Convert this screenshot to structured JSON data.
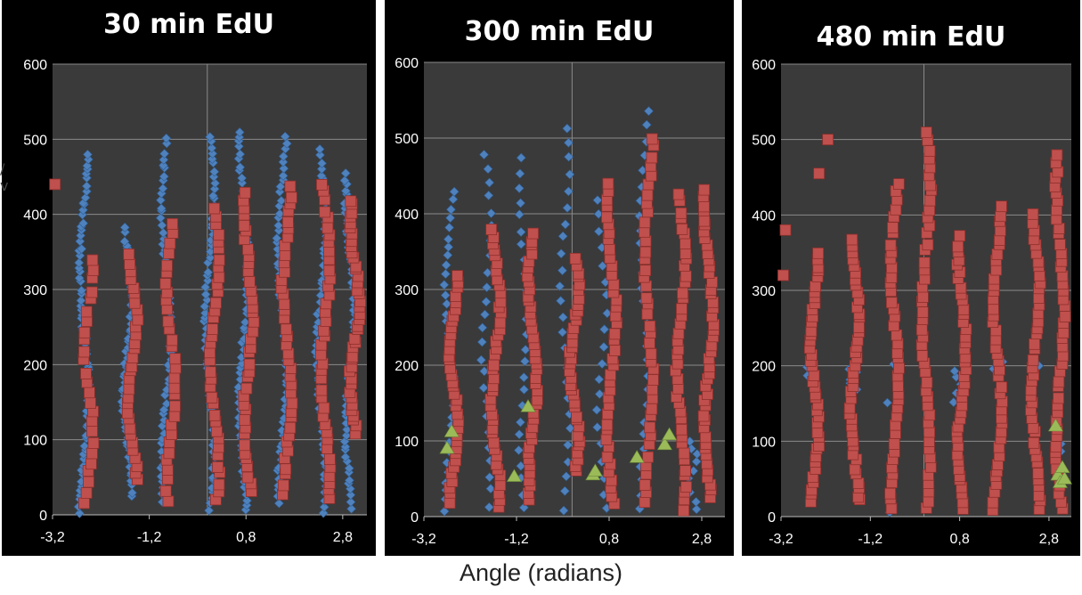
{
  "chart_data": [
    {
      "type": "scatter",
      "title": "30 min EdU",
      "xlabel": "",
      "ylabel": "",
      "xlim": [
        -3.2,
        3.3
      ],
      "ylim": [
        0,
        600
      ],
      "xticks": [
        "-3,2",
        "-1,2",
        "0,8",
        "2,8"
      ],
      "yticks": [
        "0",
        "100",
        "200",
        "300",
        "400",
        "500",
        "600"
      ],
      "grid": true,
      "series": [
        {
          "marker": "diamond",
          "color": "#4f81bd",
          "columns": [
            {
              "x": -2.55,
              "ymin": 5,
              "ymax": 480,
              "n": 70
            },
            {
              "x": -1.65,
              "ymin": 25,
              "ymax": 380,
              "n": 55
            },
            {
              "x": -0.85,
              "ymin": 20,
              "ymax": 500,
              "n": 60
            },
            {
              "x": 0.05,
              "ymin": 5,
              "ymax": 505,
              "n": 65
            },
            {
              "x": 0.75,
              "ymin": 5,
              "ymax": 512,
              "n": 65
            },
            {
              "x": 1.55,
              "ymin": 15,
              "ymax": 502,
              "n": 60
            },
            {
              "x": 2.35,
              "ymin": 5,
              "ymax": 486,
              "n": 60
            },
            {
              "x": 2.95,
              "ymin": 10,
              "ymax": 455,
              "n": 60
            }
          ]
        },
        {
          "marker": "square",
          "color": "#c0504d",
          "columns": [
            {
              "x": -2.45,
              "ymin": 15,
              "ymax": 340,
              "n": 25
            },
            {
              "x": -1.55,
              "ymin": 45,
              "ymax": 345,
              "n": 30
            },
            {
              "x": -0.75,
              "ymin": 20,
              "ymax": 385,
              "n": 30
            },
            {
              "x": 0.15,
              "ymin": 20,
              "ymax": 410,
              "n": 35
            },
            {
              "x": 0.85,
              "ymin": 30,
              "ymax": 430,
              "n": 38
            },
            {
              "x": 1.65,
              "ymin": 30,
              "ymax": 435,
              "n": 38
            },
            {
              "x": 2.45,
              "ymin": 20,
              "ymax": 440,
              "n": 38
            },
            {
              "x": 3.05,
              "ymin": 110,
              "ymax": 420,
              "n": 40
            }
          ]
        },
        {
          "marker": "triangle",
          "color": "#9bbb59",
          "points": []
        }
      ],
      "extra_points": [
        {
          "marker": "square",
          "x": -3.15,
          "y": 440
        }
      ]
    },
    {
      "type": "scatter",
      "title": "300 min EdU",
      "xlabel": "",
      "ylabel": "",
      "xlim": [
        -3.2,
        3.3
      ],
      "ylim": [
        0,
        600
      ],
      "xticks": [
        "-3,2",
        "-1,2",
        "0,8",
        "2,8"
      ],
      "yticks": [
        "0",
        "100",
        "200",
        "300",
        "400",
        "500",
        "600"
      ],
      "grid": true,
      "series": [
        {
          "marker": "diamond",
          "color": "#4f81bd",
          "columns": [
            {
              "x": -2.65,
              "ymin": 10,
              "ymax": 430,
              "n": 35
            },
            {
              "x": -1.85,
              "ymin": 15,
              "ymax": 480,
              "n": 25
            },
            {
              "x": -1.05,
              "ymin": 10,
              "ymax": 475,
              "n": 25
            },
            {
              "x": -0.15,
              "ymin": 10,
              "ymax": 515,
              "n": 25
            },
            {
              "x": 0.65,
              "ymin": 10,
              "ymax": 420,
              "n": 20
            },
            {
              "x": 1.55,
              "ymin": 10,
              "ymax": 535,
              "n": 28
            },
            {
              "x": 2.6,
              "ymin": 10,
              "ymax": 100,
              "n": 10
            }
          ]
        },
        {
          "marker": "square",
          "color": "#c0504d",
          "columns": [
            {
              "x": -2.55,
              "ymin": 20,
              "ymax": 320,
              "n": 35
            },
            {
              "x": -1.65,
              "ymin": 15,
              "ymax": 380,
              "n": 40
            },
            {
              "x": -0.85,
              "ymin": 20,
              "ymax": 375,
              "n": 40
            },
            {
              "x": 0.05,
              "ymin": 60,
              "ymax": 340,
              "n": 35
            },
            {
              "x": 0.85,
              "ymin": 15,
              "ymax": 440,
              "n": 40
            },
            {
              "x": 1.65,
              "ymin": 20,
              "ymax": 500,
              "n": 40
            },
            {
              "x": 2.35,
              "ymin": 10,
              "ymax": 425,
              "n": 40
            },
            {
              "x": 2.95,
              "ymin": 25,
              "ymax": 430,
              "n": 45
            }
          ]
        },
        {
          "marker": "triangle",
          "color": "#9bbb59",
          "points": [
            {
              "x": -2.7,
              "y": 90
            },
            {
              "x": -2.6,
              "y": 112
            },
            {
              "x": -1.25,
              "y": 53
            },
            {
              "x": -0.95,
              "y": 145
            },
            {
              "x": 0.45,
              "y": 55
            },
            {
              "x": 0.5,
              "y": 60
            },
            {
              "x": 1.4,
              "y": 78
            },
            {
              "x": 2.0,
              "y": 95
            },
            {
              "x": 2.1,
              "y": 108
            }
          ]
        }
      ]
    },
    {
      "type": "scatter",
      "title": "480 min EdU",
      "xlabel": "",
      "ylabel": "",
      "xlim": [
        -3.2,
        3.3
      ],
      "ylim": [
        0,
        600
      ],
      "xticks": [
        "-3,2",
        "-1,2",
        "0,8",
        "2,8"
      ],
      "yticks": [
        "0",
        "100",
        "200",
        "300",
        "400",
        "500",
        "600"
      ],
      "grid": true,
      "series": [
        {
          "marker": "diamond",
          "color": "#4f81bd",
          "columns": [
            {
              "x": -2.55,
              "ymin": 190,
              "ymax": 205,
              "n": 4
            },
            {
              "x": -1.6,
              "ymin": 170,
              "ymax": 195,
              "n": 5
            },
            {
              "x": -0.7,
              "ymin": 5,
              "ymax": 200,
              "n": 5
            },
            {
              "x": 0.75,
              "ymin": 140,
              "ymax": 195,
              "n": 6
            },
            {
              "x": 1.65,
              "ymin": 195,
              "ymax": 205,
              "n": 3
            },
            {
              "x": 2.5,
              "ymin": 200,
              "ymax": 210,
              "n": 3
            },
            {
              "x": 3.05,
              "ymin": 85,
              "ymax": 100,
              "n": 4
            }
          ]
        },
        {
          "marker": "square",
          "color": "#c0504d",
          "columns": [
            {
              "x": -2.45,
              "ymin": 20,
              "ymax": 350,
              "n": 40
            },
            {
              "x": -1.55,
              "ymin": 20,
              "ymax": 370,
              "n": 40
            },
            {
              "x": -0.65,
              "ymin": 10,
              "ymax": 440,
              "n": 40
            },
            {
              "x": 0.05,
              "ymin": 10,
              "ymax": 510,
              "n": 45
            },
            {
              "x": 0.85,
              "ymin": 10,
              "ymax": 370,
              "n": 40
            },
            {
              "x": 1.65,
              "ymin": 10,
              "ymax": 410,
              "n": 40
            },
            {
              "x": 2.5,
              "ymin": 10,
              "ymax": 400,
              "n": 40
            },
            {
              "x": 3.05,
              "ymin": 10,
              "ymax": 480,
              "n": 45
            }
          ]
        },
        {
          "marker": "triangle",
          "color": "#9bbb59",
          "points": [
            {
              "x": 2.95,
              "y": 120
            },
            {
              "x": 3.0,
              "y": 55
            },
            {
              "x": 3.05,
              "y": 45
            },
            {
              "x": 3.1,
              "y": 65
            },
            {
              "x": 3.15,
              "y": 50
            }
          ]
        }
      ],
      "extra_points": [
        {
          "marker": "square",
          "x": -3.15,
          "y": 320
        },
        {
          "marker": "square",
          "x": -3.1,
          "y": 380
        },
        {
          "marker": "square",
          "x": -2.35,
          "y": 455
        },
        {
          "marker": "square",
          "x": -2.15,
          "y": 500
        }
      ]
    }
  ],
  "figure": {
    "xlabel": "Angle (radians)",
    "side_glyph": "/ v"
  }
}
